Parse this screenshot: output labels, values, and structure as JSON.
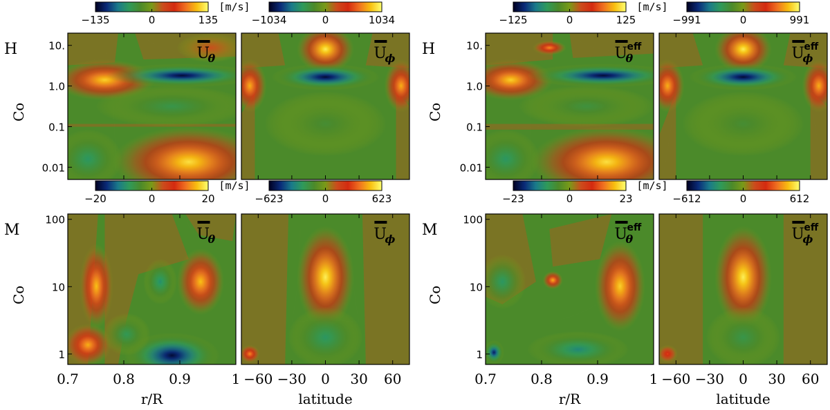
{
  "figure": {
    "unit_label": "[m/s]",
    "row_labels": [
      "H",
      "M"
    ],
    "co_label": "Co",
    "x_labels": {
      "radius": "r/R",
      "latitude": "latitude"
    },
    "overline_symbol": "U",
    "sub_theta": "θ",
    "sub_phi": "ϕ",
    "sup_eff": "eff"
  },
  "colorscale": {
    "stops": [
      "#000020",
      "#0a2a78",
      "#1a7a8a",
      "#2f9a5a",
      "#4b8a2a",
      "#7a9a18",
      "#cc4c1c",
      "#d42a10",
      "#f07020",
      "#f8c010",
      "#ffff70"
    ]
  },
  "chart_data": [
    {
      "type": "heatmap",
      "group": "left",
      "row": "H",
      "variable": "U_theta",
      "x_range": [
        0.7,
        1.0
      ],
      "x_ticks": [
        "0.7",
        "0.8",
        "0.9",
        "1"
      ],
      "y_scale": "log",
      "y_range": [
        0.005,
        20
      ],
      "y_ticks": [
        "0.01",
        "0.1",
        "1.0",
        "10."
      ],
      "colorbar": {
        "min": -135,
        "max": 135,
        "ticks": [
          "−135",
          "0",
          "135"
        ]
      }
    },
    {
      "type": "heatmap",
      "group": "left",
      "row": "H",
      "variable": "U_phi",
      "x_range": [
        -75,
        75
      ],
      "x_ticks": [
        "−60",
        "−30",
        "0",
        "30",
        "60"
      ],
      "y_scale": "log",
      "y_range": [
        0.005,
        20
      ],
      "colorbar": {
        "min": -1034,
        "max": 1034,
        "ticks": [
          "−1034",
          "0",
          "1034"
        ]
      }
    },
    {
      "type": "heatmap",
      "group": "left",
      "row": "M",
      "variable": "U_theta",
      "x_range": [
        0.7,
        1.0
      ],
      "x_ticks": [
        "0.7",
        "0.8",
        "0.9",
        "1"
      ],
      "y_scale": "log",
      "y_range": [
        0.7,
        120
      ],
      "y_ticks": [
        "1",
        "10",
        "100"
      ],
      "colorbar": {
        "min": -20,
        "max": 20,
        "ticks": [
          "−20",
          "0",
          "20"
        ]
      }
    },
    {
      "type": "heatmap",
      "group": "left",
      "row": "M",
      "variable": "U_phi",
      "x_range": [
        -75,
        75
      ],
      "x_ticks": [
        "−60",
        "−30",
        "0",
        "30",
        "60"
      ],
      "y_scale": "log",
      "y_range": [
        0.7,
        120
      ],
      "colorbar": {
        "min": -623,
        "max": 623,
        "ticks": [
          "−623",
          "0",
          "623"
        ]
      }
    },
    {
      "type": "heatmap",
      "group": "right",
      "row": "H",
      "variable": "U_theta_eff",
      "x_range": [
        0.7,
        1.0
      ],
      "x_ticks": [
        "0.7",
        "0.8",
        "0.9",
        "1"
      ],
      "y_scale": "log",
      "y_range": [
        0.005,
        20
      ],
      "y_ticks": [
        "0.01",
        "0.1",
        "1.0",
        "10."
      ],
      "colorbar": {
        "min": -125,
        "max": 125,
        "ticks": [
          "−125",
          "0",
          "125"
        ]
      }
    },
    {
      "type": "heatmap",
      "group": "right",
      "row": "H",
      "variable": "U_phi_eff",
      "x_range": [
        -75,
        75
      ],
      "x_ticks": [
        "−60",
        "−30",
        "0",
        "30",
        "60"
      ],
      "y_scale": "log",
      "y_range": [
        0.005,
        20
      ],
      "colorbar": {
        "min": -991,
        "max": 991,
        "ticks": [
          "−991",
          "0",
          "991"
        ]
      }
    },
    {
      "type": "heatmap",
      "group": "right",
      "row": "M",
      "variable": "U_theta_eff",
      "x_range": [
        0.7,
        1.0
      ],
      "x_ticks": [
        "0.7",
        "0.8",
        "0.9",
        "1"
      ],
      "y_scale": "log",
      "y_range": [
        0.7,
        120
      ],
      "y_ticks": [
        "1",
        "10",
        "100"
      ],
      "colorbar": {
        "min": -23,
        "max": 23,
        "ticks": [
          "−23",
          "0",
          "23"
        ]
      }
    },
    {
      "type": "heatmap",
      "group": "right",
      "row": "M",
      "variable": "U_phi_eff",
      "x_range": [
        -75,
        75
      ],
      "x_ticks": [
        "−60",
        "−30",
        "0",
        "30",
        "60"
      ],
      "y_scale": "log",
      "y_range": [
        0.7,
        120
      ],
      "colorbar": {
        "min": -612,
        "max": 612,
        "ticks": [
          "−612",
          "0",
          "612"
        ]
      }
    }
  ]
}
